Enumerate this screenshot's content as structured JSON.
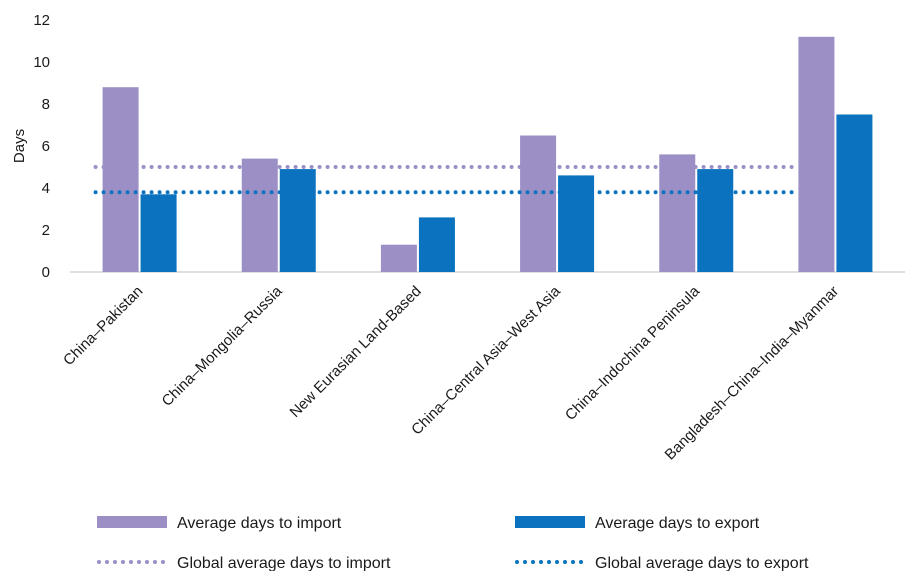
{
  "chart_data": {
    "type": "bar",
    "ylabel": "Days",
    "ylim": [
      0,
      12
    ],
    "yticks": [
      0,
      2,
      4,
      6,
      8,
      10,
      12
    ],
    "grid": false,
    "legend_placement": "bottom",
    "categories": [
      "China–Pakistan",
      "China–Mongolia–Russia",
      "New Eurasian Land-Based",
      "China–Central Asia–West Asia",
      "China–Indochina Peninsula",
      "Bangladesh–China–India–Myanmar"
    ],
    "series": [
      {
        "name": "Average days to import",
        "type": "bar",
        "color": "#9b8fc6",
        "values": [
          8.8,
          5.4,
          1.3,
          6.5,
          5.6,
          11.2
        ]
      },
      {
        "name": "Average days to export",
        "type": "bar",
        "color": "#0a72bf",
        "values": [
          3.7,
          4.9,
          2.6,
          4.6,
          4.9,
          7.5
        ]
      },
      {
        "name": "Global average days to import",
        "type": "line",
        "style": "dotted",
        "color": "#9b8fc6",
        "value": 5.0
      },
      {
        "name": "Global average days to export",
        "type": "line",
        "style": "dotted",
        "color": "#0a72bf",
        "value": 3.8
      }
    ]
  }
}
